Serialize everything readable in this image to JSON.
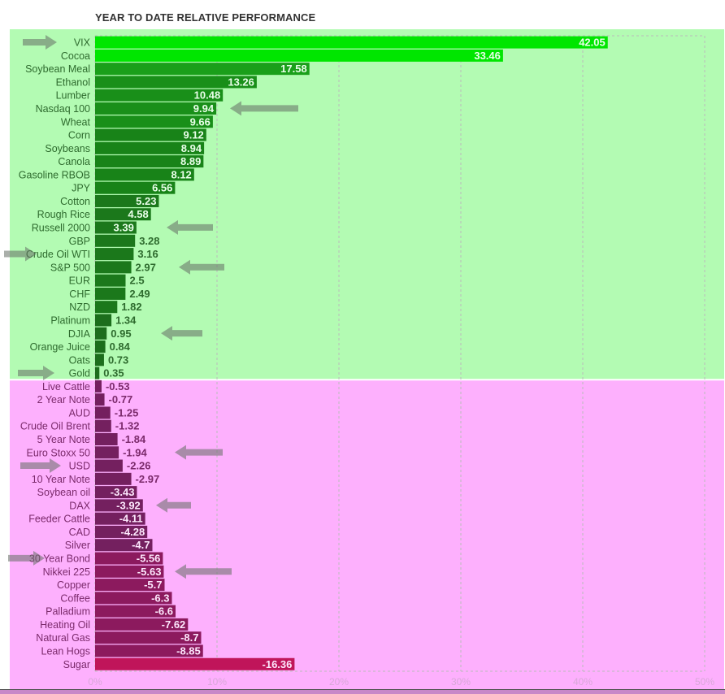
{
  "chart_data": {
    "type": "bar",
    "orientation": "horizontal",
    "title": "YEAR TO DATE RELATIVE PERFORMANCE",
    "xlabel": "",
    "ylabel": "",
    "xlim": [
      0,
      50
    ],
    "x_ticks": [
      "0%",
      "10%",
      "20%",
      "30%",
      "40%",
      "50%"
    ],
    "grid": true,
    "value_mode": "absolute bar length, signed label",
    "categories": [
      "VIX",
      "Cocoa",
      "Soybean Meal",
      "Ethanol",
      "Lumber",
      "Nasdaq 100",
      "Wheat",
      "Corn",
      "Soybeans",
      "Canola",
      "Gasoline RBOB",
      "JPY",
      "Cotton",
      "Rough Rice",
      "Russell 2000",
      "GBP",
      "Crude Oil WTI",
      "S&P 500",
      "EUR",
      "CHF",
      "NZD",
      "Platinum",
      "DJIA",
      "Orange Juice",
      "Oats",
      "Gold",
      "Live Cattle",
      "2 Year Note",
      "AUD",
      "Crude Oil Brent",
      "5 Year Note",
      "Euro Stoxx 50",
      "USD",
      "10 Year Note",
      "Soybean oil",
      "DAX",
      "Feeder Cattle",
      "CAD",
      "Silver",
      "30 Year Bond",
      "Nikkei 225",
      "Copper",
      "Coffee",
      "Palladium",
      "Heating Oil",
      "Natural Gas",
      "Lean Hogs",
      "Sugar"
    ],
    "values": [
      42.05,
      33.46,
      17.58,
      13.26,
      10.48,
      9.94,
      9.66,
      9.12,
      8.94,
      8.89,
      8.12,
      6.56,
      5.23,
      4.58,
      3.39,
      3.28,
      3.16,
      2.97,
      2.5,
      2.49,
      1.82,
      1.34,
      0.95,
      0.84,
      0.73,
      0.35,
      -0.53,
      -0.77,
      -1.25,
      -1.32,
      -1.84,
      -1.94,
      -2.26,
      -2.97,
      -3.43,
      -3.92,
      -4.11,
      -4.28,
      -4.7,
      -5.56,
      -5.63,
      -5.7,
      -6.3,
      -6.6,
      -7.62,
      -8.7,
      -8.85,
      -16.36
    ],
    "value_labels": [
      "42.05",
      "33.46",
      "17.58",
      "13.26",
      "10.48",
      "9.94",
      "9.66",
      "9.12",
      "8.94",
      "8.89",
      "8.12",
      "6.56",
      "5.23",
      "4.58",
      "3.39",
      "3.28",
      "3.16",
      "2.97",
      "2.5",
      "2.49",
      "1.82",
      "1.34",
      "0.95",
      "0.84",
      "0.73",
      "0.35",
      "-0.53",
      "-0.77",
      "-1.25",
      "-1.32",
      "-1.84",
      "-1.94",
      "-2.26",
      "-2.97",
      "-3.43",
      "-3.92",
      "-4.11",
      "-4.28",
      "-4.7",
      "-5.56",
      "-5.63",
      "-5.7",
      "-6.3",
      "-6.6",
      "-7.62",
      "-8.7",
      "-8.85",
      "-16.36"
    ],
    "highlighted": [
      "VIX",
      "Nasdaq 100",
      "Russell 2000",
      "Crude Oil WTI",
      "S&P 500",
      "DJIA",
      "Gold",
      "Euro Stoxx 50",
      "USD",
      "DAX",
      "30 Year Bond",
      "Nikkei 225"
    ]
  },
  "colors": {
    "positive_bg": "#b3fbb3",
    "negative_bg": "#fdb0fd",
    "top_positive": "#00e600",
    "positive_bar": "#1a8a1a",
    "negative_bar": "#74205f",
    "bottom_negative": "#c0155a",
    "positive_text": "#2e6b2e",
    "negative_text": "#7b2a6b",
    "arrow": "#7f8f7f"
  }
}
